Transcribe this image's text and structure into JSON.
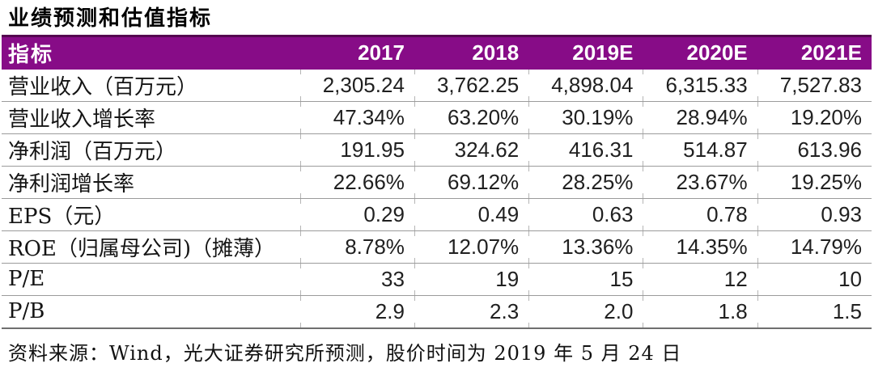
{
  "title": "业绩预测和估值指标",
  "colors": {
    "header_bg": "#870C87",
    "header_text": "#FFFFFF",
    "row_line": "#9B9B9B"
  },
  "table": {
    "columns": [
      "指标",
      "2017",
      "2018",
      "2019E",
      "2020E",
      "2021E"
    ],
    "rows": [
      {
        "label": "营业收入（百万元）",
        "values": [
          "2,305.24",
          "3,762.25",
          "4,898.04",
          "6,315.33",
          "7,527.83"
        ]
      },
      {
        "label": "营业收入增长率",
        "values": [
          "47.34%",
          "63.20%",
          "30.19%",
          "28.94%",
          "19.20%"
        ]
      },
      {
        "label": "净利润（百万元）",
        "values": [
          "191.95",
          "324.62",
          "416.31",
          "514.87",
          "613.96"
        ]
      },
      {
        "label": "净利润增长率",
        "values": [
          "22.66%",
          "69.12%",
          "28.25%",
          "23.67%",
          "19.25%"
        ]
      },
      {
        "label": "EPS（元）",
        "values": [
          "0.29",
          "0.49",
          "0.63",
          "0.78",
          "0.93"
        ]
      },
      {
        "label": "ROE（归属母公司)（摊薄）",
        "values": [
          "8.78%",
          "12.07%",
          "13.36%",
          "14.35%",
          "14.79%"
        ]
      },
      {
        "label": "P/E",
        "values": [
          "33",
          "19",
          "15",
          "12",
          "10"
        ]
      },
      {
        "label": "P/B",
        "values": [
          "2.9",
          "2.3",
          "2.0",
          "1.8",
          "1.5"
        ]
      }
    ]
  },
  "footer": "资料来源：Wind，光大证券研究所预测，股价时间为 2019 年 5 月 24 日"
}
